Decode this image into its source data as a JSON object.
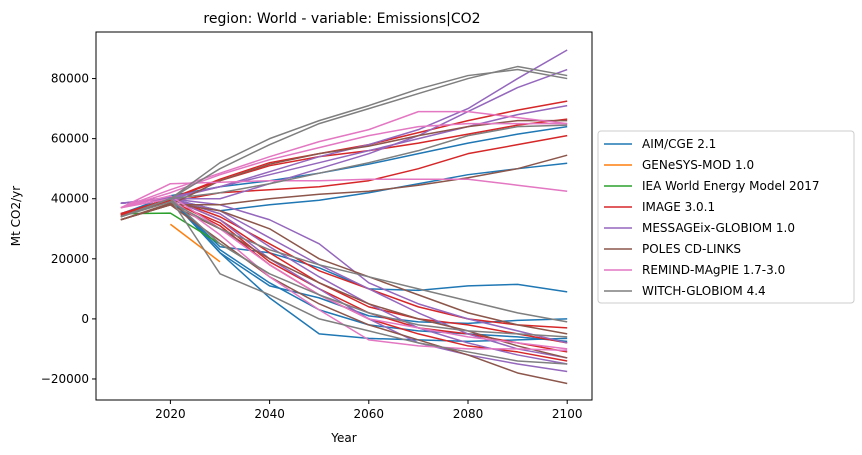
{
  "chart_data": {
    "type": "line",
    "title": "region: World - variable: Emissions|CO2",
    "xlabel": "Year",
    "ylabel": "Mt CO2/yr",
    "xlim": [
      2005,
      2105
    ],
    "ylim": [
      -27000,
      95500
    ],
    "xticks": [
      2020,
      2040,
      2060,
      2080,
      2100
    ],
    "yticks": [
      -20000,
      0,
      20000,
      40000,
      60000,
      80000
    ],
    "grid": false,
    "legend_position": "outside-right",
    "series": [
      {
        "name": "AIM/CGE 2.1",
        "color": "#1f77b4",
        "runs": [
          {
            "x": [
              2010,
              2020,
              2030,
              2040,
              2050,
              2060,
              2070,
              2080,
              2090,
              2100
            ],
            "y": [
              34800,
              40000,
              36000,
              38000,
              39500,
              42000,
              45000,
              48000,
              50000,
              51800
            ]
          },
          {
            "x": [
              2010,
              2020,
              2030,
              2040,
              2050,
              2060,
              2070,
              2080,
              2090,
              2100
            ],
            "y": [
              35000,
              41000,
              44000,
              46000,
              48500,
              51500,
              55000,
              58500,
              61500,
              64000
            ]
          },
          {
            "x": [
              2010,
              2020,
              2030,
              2040,
              2050,
              2060,
              2070,
              2080,
              2090,
              2100
            ],
            "y": [
              35000,
              40000,
              24000,
              22000,
              17000,
              10000,
              9500,
              11000,
              11500,
              9000
            ]
          },
          {
            "x": [
              2010,
              2020,
              2030,
              2040,
              2050,
              2060,
              2070,
              2080,
              2090,
              2100
            ],
            "y": [
              35000,
              40000,
              22000,
              11000,
              7000,
              1000,
              -1000,
              -1500,
              -500,
              0
            ]
          },
          {
            "x": [
              2010,
              2020,
              2030,
              2040,
              2050,
              2060,
              2070,
              2080,
              2090,
              2100
            ],
            "y": [
              35000,
              40000,
              22000,
              7000,
              -5000,
              -6500,
              -7000,
              -7500,
              -7000,
              -6500
            ]
          },
          {
            "x": [
              2010,
              2020,
              2030,
              2040,
              2050,
              2060,
              2070,
              2080,
              2090,
              2100
            ],
            "y": [
              35000,
              40000,
              23000,
              12000,
              3000,
              -2000,
              -4000,
              -5000,
              -6000,
              -7500
            ]
          }
        ]
      },
      {
        "name": "GENeSYS-MOD 1.0",
        "color": "#ff7f0e",
        "runs": [
          {
            "x": [
              2020,
              2030
            ],
            "y": [
              31500,
              19000
            ]
          }
        ]
      },
      {
        "name": "IEA World Energy Model 2017",
        "color": "#2ca02c",
        "runs": [
          {
            "x": [
              2010,
              2020,
              2030,
              2040
            ],
            "y": [
              35000,
              35200,
              25000,
              15000
            ]
          }
        ]
      },
      {
        "name": "IMAGE 3.0.1",
        "color": "#d62728",
        "runs": [
          {
            "x": [
              2010,
              2020,
              2030,
              2040,
              2050,
              2060,
              2070,
              2080,
              2090,
              2100
            ],
            "y": [
              34500,
              39000,
              42000,
              43000,
              44000,
              46000,
              50000,
              55000,
              58000,
              61000
            ]
          },
          {
            "x": [
              2010,
              2020,
              2030,
              2040,
              2050,
              2060,
              2070,
              2080,
              2090,
              2100
            ],
            "y": [
              34500,
              40000,
              46000,
              51000,
              54000,
              56000,
              58500,
              61500,
              64500,
              66500
            ]
          },
          {
            "x": [
              2010,
              2020,
              2030,
              2040,
              2050,
              2060,
              2070,
              2080,
              2090,
              2100
            ],
            "y": [
              35000,
              40000,
              46500,
              52000,
              55000,
              58000,
              62000,
              66000,
              69500,
              72500
            ]
          },
          {
            "x": [
              2010,
              2020,
              2030,
              2040,
              2050,
              2060,
              2070,
              2080,
              2090,
              2100
            ],
            "y": [
              35000,
              40000,
              34000,
              25000,
              16000,
              10000,
              4000,
              0,
              -2000,
              -3000
            ]
          },
          {
            "x": [
              2010,
              2020,
              2030,
              2040,
              2050,
              2060,
              2070,
              2080,
              2090,
              2100
            ],
            "y": [
              35000,
              40000,
              33000,
              22000,
              12000,
              4000,
              0,
              -2000,
              -5000,
              -8000
            ]
          },
          {
            "x": [
              2010,
              2020,
              2030,
              2040,
              2050,
              2060,
              2070,
              2080,
              2090,
              2100
            ],
            "y": [
              35000,
              39000,
              32000,
              19000,
              10000,
              2000,
              -3000,
              -5000,
              -8000,
              -11000
            ]
          },
          {
            "x": [
              2010,
              2020,
              2030,
              2040,
              2050,
              2060,
              2070,
              2080,
              2090,
              2100
            ],
            "y": [
              35000,
              39500,
              31000,
              18000,
              8000,
              0,
              -5000,
              -9000,
              -11000,
              -14000
            ]
          }
        ]
      },
      {
        "name": "MESSAGEix-GLOBIOM 1.0",
        "color": "#9467bd",
        "runs": [
          {
            "x": [
              2010,
              2020,
              2030,
              2040,
              2050,
              2060,
              2070,
              2080,
              2090,
              2100
            ],
            "y": [
              38500,
              40000,
              44000,
              49000,
              54000,
              58000,
              63000,
              70000,
              80000,
              89500
            ]
          },
          {
            "x": [
              2010,
              2020,
              2030,
              2040,
              2050,
              2060,
              2070,
              2080,
              2090,
              2100
            ],
            "y": [
              38500,
              40500,
              44000,
              48000,
              52000,
              56000,
              60000,
              64000,
              68000,
              71000
            ]
          },
          {
            "x": [
              2010,
              2020,
              2030,
              2040,
              2050,
              2060,
              2070,
              2080,
              2090,
              2100
            ],
            "y": [
              38500,
              40000,
              40000,
              45000,
              50000,
              55000,
              61000,
              69000,
              77000,
              83000
            ]
          },
          {
            "x": [
              2010,
              2020,
              2030,
              2040,
              2050,
              2060,
              2070,
              2080,
              2090,
              2100
            ],
            "y": [
              38500,
              40000,
              38000,
              33000,
              25000,
              12000,
              5000,
              0,
              -4000,
              -8000
            ]
          },
          {
            "x": [
              2010,
              2020,
              2030,
              2040,
              2050,
              2060,
              2070,
              2080,
              2090,
              2100
            ],
            "y": [
              38500,
              40000,
              36000,
              27000,
              18000,
              10000,
              2000,
              -5000,
              -10000,
              -13000
            ]
          },
          {
            "x": [
              2010,
              2020,
              2030,
              2040,
              2050,
              2060,
              2070,
              2080,
              2090,
              2100
            ],
            "y": [
              38500,
              40000,
              35000,
              24000,
              14000,
              5000,
              -3000,
              -8000,
              -12000,
              -15000
            ]
          },
          {
            "x": [
              2010,
              2020,
              2030,
              2040,
              2050,
              2060,
              2070,
              2080,
              2090,
              2100
            ],
            "y": [
              38500,
              40000,
              33000,
              20000,
              10000,
              0,
              -8000,
              -12000,
              -15000,
              -17500
            ]
          }
        ]
      },
      {
        "name": "POLES CD-LINKS",
        "color": "#8c564b",
        "runs": [
          {
            "x": [
              2010,
              2020,
              2030,
              2040,
              2050,
              2060,
              2070,
              2080,
              2090,
              2100
            ],
            "y": [
              33000,
              38000,
              38000,
              40000,
              41500,
              42500,
              44500,
              47000,
              50000,
              54500
            ]
          },
          {
            "x": [
              2010,
              2020,
              2030,
              2040,
              2050,
              2060,
              2070,
              2080,
              2090,
              2100
            ],
            "y": [
              33000,
              38000,
              46000,
              51500,
              55000,
              57500,
              61000,
              64000,
              66000,
              66000
            ]
          },
          {
            "x": [
              2010,
              2020,
              2030,
              2040,
              2050,
              2060,
              2070,
              2080,
              2090,
              2100
            ],
            "y": [
              33000,
              38500,
              36000,
              30000,
              20000,
              14000,
              8000,
              2000,
              -2000,
              -5000
            ]
          },
          {
            "x": [
              2010,
              2020,
              2030,
              2040,
              2050,
              2060,
              2070,
              2080,
              2090,
              2100
            ],
            "y": [
              33000,
              38000,
              30000,
              20000,
              12000,
              5000,
              0,
              -4000,
              -9000,
              -13000
            ]
          },
          {
            "x": [
              2010,
              2020,
              2030,
              2040,
              2050,
              2060,
              2070,
              2080,
              2090,
              2100
            ],
            "y": [
              33000,
              38000,
              26000,
              14000,
              5000,
              -2000,
              -7000,
              -12000,
              -18000,
              -21500
            ]
          }
        ]
      },
      {
        "name": "REMIND-MAgPIE 1.7-3.0",
        "color": "#e377c2",
        "runs": [
          {
            "x": [
              2010,
              2020,
              2030,
              2040,
              2050,
              2060,
              2070,
              2080,
              2090,
              2100
            ],
            "y": [
              37000,
              45000,
              45500,
              46000,
              46000,
              46500,
              46500,
              46500,
              44500,
              42500
            ]
          },
          {
            "x": [
              2010,
              2020,
              2030,
              2040,
              2050,
              2060,
              2070,
              2080,
              2090,
              2100
            ],
            "y": [
              37000,
              42000,
              48000,
              53000,
              57000,
              61000,
              64000,
              65000,
              65000,
              65000
            ]
          },
          {
            "x": [
              2010,
              2020,
              2030,
              2040,
              2050,
              2060,
              2070,
              2080,
              2090,
              2100
            ],
            "y": [
              37000,
              43000,
              48500,
              54000,
              59000,
              63000,
              69000,
              69000,
              67000,
              65000
            ]
          },
          {
            "x": [
              2010,
              2020,
              2030,
              2040,
              2050,
              2060,
              2070,
              2080,
              2090,
              2100
            ],
            "y": [
              37000,
              41000,
              30000,
              18000,
              8000,
              0,
              -3000,
              -6000,
              -8000,
              -10000
            ]
          },
          {
            "x": [
              2010,
              2020,
              2030,
              2040,
              2050,
              2060,
              2070,
              2080,
              2090,
              2100
            ],
            "y": [
              37000,
              40000,
              28000,
              14000,
              3000,
              -7000,
              -9000,
              -10000,
              -10000,
              -10500
            ]
          }
        ]
      },
      {
        "name": "WITCH-GLOBIOM 4.4",
        "color": "#7f7f7f",
        "runs": [
          {
            "x": [
              2010,
              2020,
              2030,
              2040,
              2050,
              2060,
              2070,
              2080,
              2090,
              2100
            ],
            "y": [
              34000,
              40000,
              52000,
              60000,
              66000,
              71000,
              76500,
              81000,
              83000,
              80000
            ]
          },
          {
            "x": [
              2010,
              2020,
              2030,
              2040,
              2050,
              2060,
              2070,
              2080,
              2090,
              2100
            ],
            "y": [
              34000,
              40000,
              50000,
              58000,
              65000,
              70000,
              75000,
              80000,
              84000,
              81000
            ]
          },
          {
            "x": [
              2010,
              2020,
              2030,
              2040,
              2050,
              2060,
              2070,
              2080,
              2090,
              2100
            ],
            "y": [
              34000,
              40000,
              42000,
              45000,
              48500,
              52000,
              56000,
              61000,
              64000,
              64500
            ]
          },
          {
            "x": [
              2010,
              2020,
              2030,
              2040,
              2050,
              2060,
              2070,
              2080,
              2090,
              2100
            ],
            "y": [
              34000,
              39000,
              30000,
              23000,
              18000,
              14000,
              10000,
              6000,
              2000,
              -1000
            ]
          },
          {
            "x": [
              2010,
              2020,
              2030,
              2040,
              2050,
              2060,
              2070,
              2080,
              2090,
              2100
            ],
            "y": [
              34000,
              40000,
              15000,
              8000,
              0,
              -4000,
              -8000,
              -11000,
              -14000,
              -15000
            ]
          },
          {
            "x": [
              2010,
              2020,
              2030,
              2040,
              2050,
              2060,
              2070,
              2080,
              2090,
              2100
            ],
            "y": [
              34000,
              40000,
              25000,
              15000,
              8000,
              2000,
              -2000,
              -4000,
              -5000,
              -6000
            ]
          }
        ]
      }
    ]
  }
}
